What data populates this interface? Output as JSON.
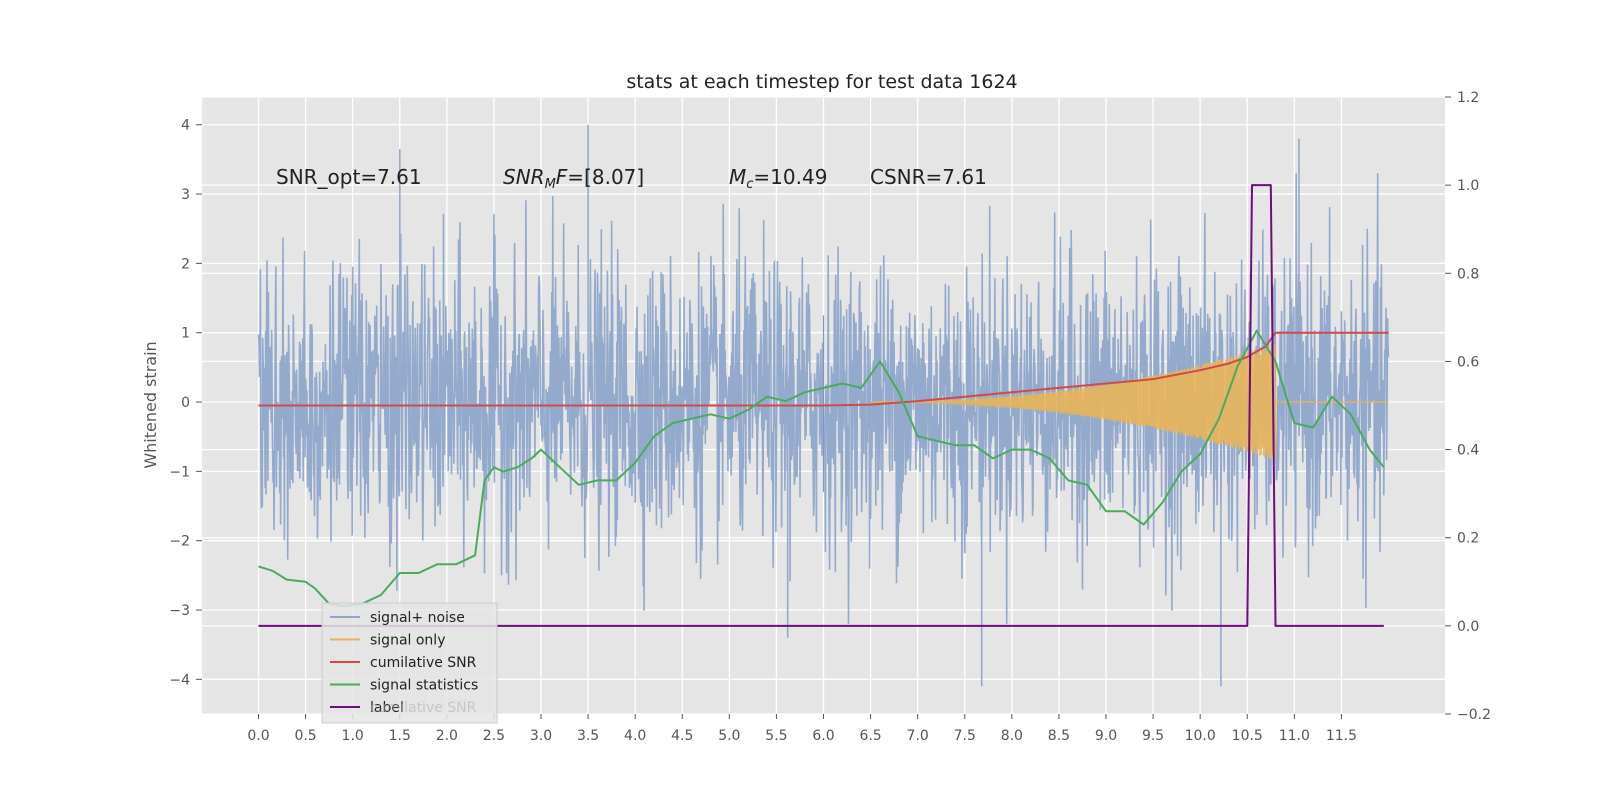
{
  "chart_data": {
    "type": "line",
    "title": "stats at each timestep for test data 1624",
    "xlabel": "",
    "ylabel": "Whitened strain",
    "y2label": "",
    "xlim": [
      -0.6,
      12.6
    ],
    "ylim": [
      -4.5,
      4.4
    ],
    "y2lim": [
      -0.2,
      1.2
    ],
    "x_ticks": [
      "0.0",
      "0.5",
      "1.0",
      "1.5",
      "2.0",
      "2.5",
      "3.0",
      "3.5",
      "4.0",
      "4.5",
      "5.0",
      "5.5",
      "6.0",
      "6.5",
      "7.0",
      "7.5",
      "8.0",
      "8.5",
      "9.0",
      "9.5",
      "10.0",
      "10.5",
      "11.0",
      "11.5"
    ],
    "y_ticks": [
      "4",
      "3",
      "2",
      "1",
      "0",
      "−1",
      "−2",
      "−3",
      "−4"
    ],
    "y2_ticks": [
      "1.2",
      "1.0",
      "0.8",
      "0.6",
      "0.4",
      "0.2",
      "0.0",
      "−0.2"
    ],
    "grid": true,
    "legend_position": "lower-left",
    "annotations": [
      {
        "id": "snr-opt",
        "text": "SNR_opt=7.61"
      },
      {
        "id": "snr-mf",
        "text": "SNR_MF=[8.07]"
      },
      {
        "id": "mc",
        "text": "M_c=10.49"
      },
      {
        "id": "csnr",
        "text": "CSNR=7.61"
      }
    ],
    "series": [
      {
        "name": "signal+ noise",
        "axis": "left",
        "color": "#8fa6cb",
        "kind": "noise",
        "x_range": [
          0.0,
          12.0
        ],
        "envelope": [
          -2.2,
          2.3
        ],
        "peaks_max": [
          4.0,
          3.65,
          3.8
        ],
        "peaks_min": [
          -4.1,
          -4.1,
          -3.4
        ]
      },
      {
        "name": "signal only",
        "axis": "left",
        "color": "#e8b45a",
        "kind": "chirp",
        "x_range": [
          6.5,
          10.8
        ],
        "amplitude_at_end": 0.85
      },
      {
        "name": "cumilative SNR",
        "axis": "right",
        "color": "#d04a48",
        "x": [
          0.0,
          6.0,
          6.5,
          7.0,
          7.5,
          8.0,
          8.5,
          9.0,
          9.5,
          10.0,
          10.3,
          10.5,
          10.7,
          10.8,
          11.0,
          11.5,
          12.0
        ],
        "values": [
          0.5,
          0.5,
          0.502,
          0.51,
          0.52,
          0.53,
          0.54,
          0.55,
          0.56,
          0.58,
          0.595,
          0.61,
          0.635,
          0.665,
          0.665,
          0.665,
          0.665
        ]
      },
      {
        "name": "signal statistics",
        "axis": "right",
        "color": "#4aab5c",
        "x": [
          0.0,
          0.15,
          0.3,
          0.5,
          0.6,
          0.75,
          0.9,
          1.1,
          1.3,
          1.5,
          1.7,
          1.9,
          2.1,
          2.3,
          2.4,
          2.5,
          2.6,
          2.75,
          2.9,
          3.0,
          3.2,
          3.4,
          3.6,
          3.8,
          4.0,
          4.2,
          4.4,
          4.6,
          4.8,
          5.0,
          5.2,
          5.4,
          5.6,
          5.8,
          6.0,
          6.2,
          6.4,
          6.6,
          6.8,
          7.0,
          7.2,
          7.4,
          7.6,
          7.8,
          8.0,
          8.2,
          8.4,
          8.6,
          8.8,
          9.0,
          9.2,
          9.4,
          9.6,
          9.8,
          10.0,
          10.2,
          10.4,
          10.6,
          10.8,
          11.0,
          11.2,
          11.4,
          11.6,
          11.8,
          11.95
        ],
        "values": [
          0.135,
          0.125,
          0.105,
          0.1,
          0.085,
          0.05,
          0.045,
          0.05,
          0.07,
          0.12,
          0.12,
          0.14,
          0.14,
          0.16,
          0.33,
          0.36,
          0.35,
          0.36,
          0.38,
          0.4,
          0.36,
          0.32,
          0.33,
          0.33,
          0.37,
          0.43,
          0.46,
          0.47,
          0.48,
          0.47,
          0.49,
          0.52,
          0.51,
          0.53,
          0.54,
          0.55,
          0.54,
          0.6,
          0.53,
          0.43,
          0.42,
          0.41,
          0.41,
          0.38,
          0.4,
          0.4,
          0.38,
          0.33,
          0.32,
          0.26,
          0.26,
          0.23,
          0.28,
          0.35,
          0.39,
          0.47,
          0.59,
          0.67,
          0.6,
          0.46,
          0.45,
          0.52,
          0.48,
          0.4,
          0.36
        ],
        "legend_overlap_text": "cumilative SNR"
      },
      {
        "name": "label",
        "axis": "right",
        "color": "#6e0e7c",
        "x": [
          0.0,
          10.5,
          10.55,
          10.75,
          10.8,
          11.95
        ],
        "values": [
          0.0,
          0.0,
          1.0,
          1.0,
          0.0,
          0.0
        ]
      }
    ]
  }
}
